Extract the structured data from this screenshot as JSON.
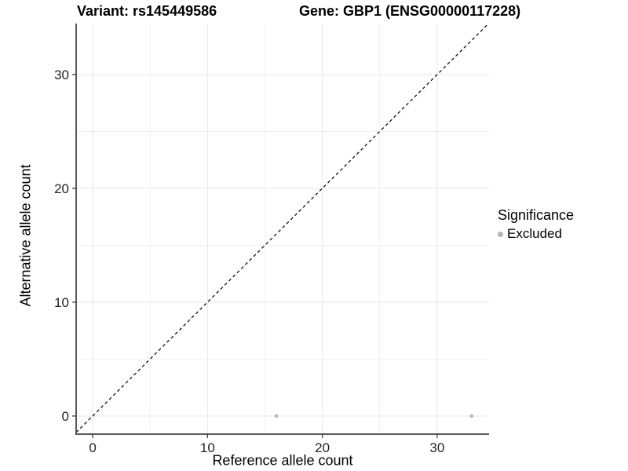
{
  "header": {
    "variant_title": "Variant: rs145449586",
    "gene_title": "Gene: GBP1 (ENSG00000117228)"
  },
  "chart_data": {
    "type": "scatter",
    "title_left": "Variant: rs145449586",
    "title_right": "Gene: GBP1 (ENSG00000117228)",
    "xlabel": "Reference allele count",
    "ylabel": "Alternative allele count",
    "xlim": [
      -1.44,
      34.52
    ],
    "ylim": [
      -1.59,
      34.48
    ],
    "xticks": [
      0,
      10,
      20,
      30
    ],
    "yticks": [
      0,
      10,
      20,
      30
    ],
    "xticks_minor": [
      5,
      15,
      25
    ],
    "yticks_minor": [
      5,
      15,
      25
    ],
    "grid": true,
    "series": [
      {
        "name": "Excluded",
        "color": "#b8b8b8",
        "points": [
          [
            16,
            0
          ],
          [
            33,
            0
          ]
        ]
      }
    ],
    "reference_line": {
      "kind": "abline",
      "slope": 1,
      "intercept": 0,
      "style": "dashed",
      "color": "#111111"
    },
    "legend": {
      "title": "Significance",
      "position": "right",
      "items": [
        {
          "label": "Excluded",
          "color": "#b5b5b5",
          "marker": "circle-icon"
        }
      ]
    }
  },
  "colors": {
    "background": "#ffffff",
    "grid_major": "#e7e7e7",
    "grid_minor": "#f0f0f0",
    "axis_line": "#454545",
    "tick_mark": "#333333",
    "tick_label": "#232323",
    "point": "#b8b8b8"
  }
}
